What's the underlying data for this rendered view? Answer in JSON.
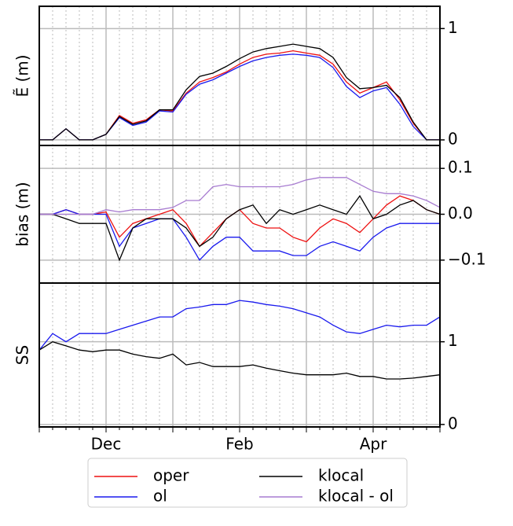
{
  "chart_data": [
    {
      "type": "line",
      "ylabel": "Ẽ (m)",
      "ylim": [
        -0.05,
        1.2
      ],
      "yticks": [
        0,
        1
      ],
      "grid": true,
      "series": [
        {
          "name": "oper",
          "color": "#ee1111",
          "values": [
            0,
            0,
            0.1,
            0,
            0,
            0.05,
            0.22,
            0.15,
            0.18,
            0.27,
            0.26,
            0.42,
            0.52,
            0.56,
            0.61,
            0.68,
            0.74,
            0.77,
            0.78,
            0.8,
            0.78,
            0.76,
            0.68,
            0.52,
            0.42,
            0.47,
            0.52,
            0.36,
            0.15,
            0,
            0
          ]
        },
        {
          "name": "ol",
          "color": "#1a1aee",
          "values": [
            0,
            0,
            0.1,
            0,
            0,
            0.05,
            0.2,
            0.13,
            0.16,
            0.26,
            0.25,
            0.41,
            0.5,
            0.54,
            0.6,
            0.66,
            0.71,
            0.74,
            0.76,
            0.77,
            0.76,
            0.74,
            0.65,
            0.48,
            0.38,
            0.44,
            0.47,
            0.32,
            0.12,
            0,
            0
          ]
        },
        {
          "name": "klocal",
          "color": "#000000",
          "values": [
            0,
            0,
            0.1,
            0,
            0,
            0.05,
            0.21,
            0.14,
            0.17,
            0.27,
            0.27,
            0.45,
            0.57,
            0.6,
            0.66,
            0.73,
            0.79,
            0.82,
            0.84,
            0.86,
            0.84,
            0.82,
            0.74,
            0.56,
            0.46,
            0.47,
            0.49,
            0.38,
            0.16,
            0,
            0
          ]
        }
      ]
    },
    {
      "type": "line",
      "ylabel": "bias (m)",
      "ylim": [
        -0.15,
        0.15
      ],
      "yticks": [
        0.1,
        {
          "value": 0,
          "label": "0.0"
        },
        {
          "value": -0.1,
          "label": "−0.1"
        }
      ],
      "grid": true,
      "series": [
        {
          "name": "oper",
          "color": "#ee1111",
          "values": [
            0,
            0,
            0.01,
            0,
            0,
            0.005,
            -0.05,
            -0.02,
            -0.01,
            0,
            0.01,
            -0.02,
            -0.07,
            -0.04,
            -0.01,
            0.01,
            -0.02,
            -0.03,
            -0.03,
            -0.05,
            -0.06,
            -0.03,
            -0.01,
            -0.02,
            -0.04,
            -0.01,
            0.02,
            0.04,
            0.03,
            0.01,
            0
          ]
        },
        {
          "name": "ol",
          "color": "#1a1aee",
          "values": [
            0,
            0,
            0.01,
            0,
            0,
            0,
            -0.07,
            -0.03,
            -0.02,
            -0.01,
            -0.01,
            -0.05,
            -0.1,
            -0.07,
            -0.05,
            -0.05,
            -0.08,
            -0.08,
            -0.08,
            -0.09,
            -0.09,
            -0.07,
            -0.06,
            -0.07,
            -0.08,
            -0.05,
            -0.03,
            -0.02,
            -0.02,
            -0.02,
            -0.02
          ]
        },
        {
          "name": "klocal",
          "color": "#000000",
          "values": [
            0,
            0,
            -0.01,
            -0.02,
            -0.02,
            -0.02,
            -0.1,
            -0.03,
            -0.01,
            -0.01,
            -0.01,
            -0.03,
            -0.07,
            -0.05,
            -0.01,
            0.01,
            0.02,
            -0.02,
            0.01,
            0,
            0.01,
            0.02,
            0.01,
            0,
            0.04,
            -0.01,
            0,
            0.02,
            0.03,
            0.01,
            0
          ]
        },
        {
          "name": "klocal - ol",
          "color": "#a77bd0",
          "values": [
            0,
            0,
            0,
            0,
            0,
            0.01,
            0.005,
            0.01,
            0.01,
            0.01,
            0.015,
            0.03,
            0.03,
            0.06,
            0.065,
            0.06,
            0.06,
            0.06,
            0.06,
            0.065,
            0.075,
            0.08,
            0.08,
            0.08,
            0.065,
            0.05,
            0.045,
            0.045,
            0.04,
            0.03,
            0.015
          ]
        }
      ]
    },
    {
      "type": "line",
      "ylabel": "SS",
      "ylim": [
        -0.03,
        1.71
      ],
      "yticks": [
        0,
        1
      ],
      "grid": true,
      "categories": [
        null,
        null,
        null,
        null,
        null,
        "Dec",
        null,
        null,
        null,
        null,
        null,
        null,
        null,
        null,
        null,
        "Feb",
        null,
        null,
        null,
        null,
        null,
        null,
        null,
        null,
        null,
        "Apr",
        null,
        null,
        null,
        null,
        null
      ],
      "series": [
        {
          "name": "ol",
          "color": "#1a1aee",
          "values": [
            0.9,
            1.1,
            1.0,
            1.1,
            1.1,
            1.1,
            1.15,
            1.2,
            1.25,
            1.3,
            1.3,
            1.4,
            1.42,
            1.45,
            1.45,
            1.5,
            1.48,
            1.45,
            1.43,
            1.4,
            1.35,
            1.3,
            1.2,
            1.12,
            1.1,
            1.15,
            1.2,
            1.18,
            1.2,
            1.2,
            1.3
          ]
        },
        {
          "name": "klocal",
          "color": "#000000",
          "values": [
            0.9,
            1.0,
            0.95,
            0.9,
            0.88,
            0.9,
            0.9,
            0.85,
            0.82,
            0.8,
            0.85,
            0.72,
            0.75,
            0.7,
            0.7,
            0.7,
            0.72,
            0.68,
            0.65,
            0.62,
            0.6,
            0.6,
            0.6,
            0.62,
            0.58,
            0.58,
            0.55,
            0.55,
            0.56,
            0.58,
            0.6
          ]
        }
      ]
    }
  ]
}
